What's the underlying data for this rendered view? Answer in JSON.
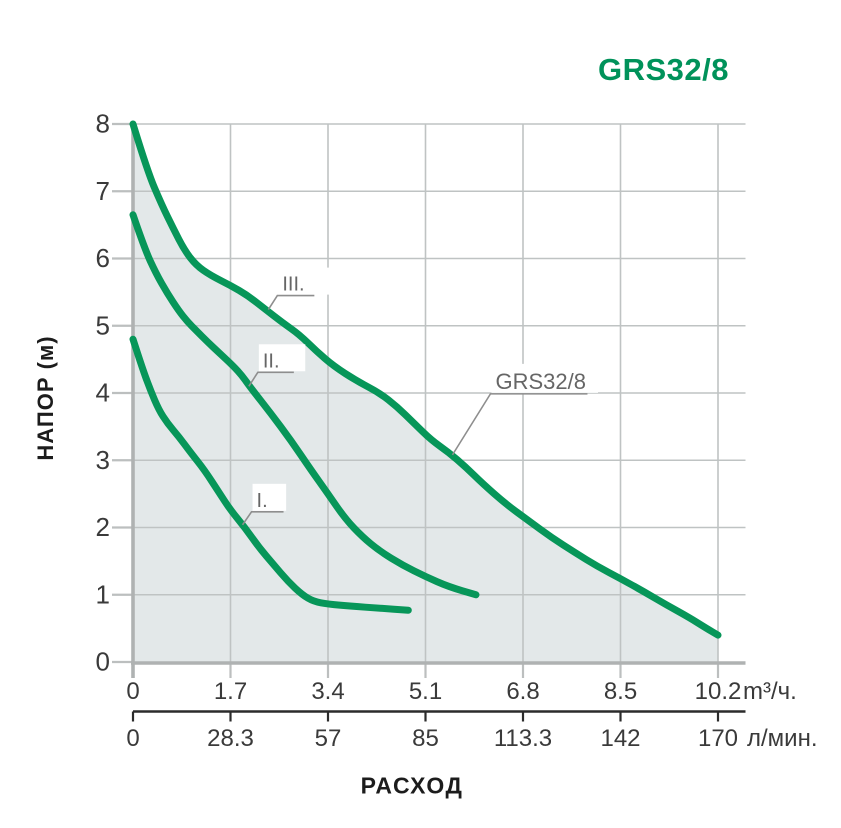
{
  "header": {
    "title": "GRS32/8",
    "title_color": "#00925A"
  },
  "chart": {
    "xlabel": "РАСХОД",
    "ylabel": "НАПОР (м)",
    "unit_primary": "m³/ч.",
    "unit_secondary": "л/мин.",
    "x_tick_labels_primary": [
      "0",
      "1.7",
      "3.4",
      "5.1",
      "6.8",
      "8.5",
      "10.2"
    ],
    "x_tick_labels_secondary": [
      "0",
      "28.3",
      "57",
      "85",
      "113.3",
      "142",
      "170"
    ],
    "y_tick_labels": [
      "0",
      "1",
      "2",
      "3",
      "4",
      "5",
      "6",
      "7",
      "8"
    ],
    "colors": {
      "curve": "#079659",
      "fill": "#E3E8E9",
      "grid": "#BFC3C3",
      "axis_gray": "#AFB2B2",
      "tick_gray": "#BCBFBF",
      "axis_dark": "#2B2B2B",
      "tick_text": "#3A3A3A",
      "annotation_text": "#666666",
      "leader": "#8E8E8E"
    }
  },
  "chart_data": {
    "type": "line",
    "title": "GRS32/8",
    "xlabel": "РАСХОД",
    "ylabel": "НАПОР (м)",
    "x_units": [
      "m³/ч.",
      "л/мин."
    ],
    "xlim": [
      0,
      10.2
    ],
    "ylim": [
      0,
      8
    ],
    "x_ticks_m3h": [
      0,
      1.7,
      3.4,
      5.1,
      6.8,
      8.5,
      10.2
    ],
    "x_ticks_lmin": [
      0,
      28.3,
      57,
      85,
      113.3,
      142,
      170
    ],
    "y_ticks": [
      0,
      1,
      2,
      3,
      4,
      5,
      6,
      7,
      8
    ],
    "grid": true,
    "fill_under_series": "III.",
    "series": [
      {
        "name": "I.",
        "points": [
          [
            0,
            4.8
          ],
          [
            0.15,
            4.4
          ],
          [
            0.3,
            4.05
          ],
          [
            0.45,
            3.75
          ],
          [
            0.6,
            3.55
          ],
          [
            0.8,
            3.35
          ],
          [
            1.0,
            3.12
          ],
          [
            1.25,
            2.85
          ],
          [
            1.5,
            2.52
          ],
          [
            1.7,
            2.26
          ],
          [
            1.95,
            2.0
          ],
          [
            2.2,
            1.7
          ],
          [
            2.45,
            1.45
          ],
          [
            2.7,
            1.2
          ],
          [
            2.95,
            1.0
          ],
          [
            3.15,
            0.9
          ],
          [
            3.4,
            0.86
          ],
          [
            3.8,
            0.83
          ],
          [
            4.3,
            0.8
          ],
          [
            4.8,
            0.77
          ]
        ]
      },
      {
        "name": "II.",
        "points": [
          [
            0,
            6.65
          ],
          [
            0.2,
            6.15
          ],
          [
            0.4,
            5.78
          ],
          [
            0.6,
            5.48
          ],
          [
            0.8,
            5.22
          ],
          [
            0.95,
            5.06
          ],
          [
            1.1,
            4.93
          ],
          [
            1.3,
            4.76
          ],
          [
            1.5,
            4.6
          ],
          [
            1.75,
            4.4
          ],
          [
            1.9,
            4.26
          ],
          [
            2.05,
            4.08
          ],
          [
            2.4,
            3.7
          ],
          [
            2.75,
            3.3
          ],
          [
            3.1,
            2.86
          ],
          [
            3.4,
            2.5
          ],
          [
            3.7,
            2.13
          ],
          [
            4.0,
            1.86
          ],
          [
            4.3,
            1.65
          ],
          [
            4.7,
            1.44
          ],
          [
            5.1,
            1.27
          ],
          [
            5.5,
            1.12
          ],
          [
            5.98,
            1.0
          ]
        ]
      },
      {
        "name": "III.",
        "points": [
          [
            0,
            8.0
          ],
          [
            0.25,
            7.3
          ],
          [
            0.5,
            6.8
          ],
          [
            0.7,
            6.45
          ],
          [
            0.9,
            6.12
          ],
          [
            1.1,
            5.9
          ],
          [
            1.35,
            5.75
          ],
          [
            1.7,
            5.6
          ],
          [
            2.0,
            5.45
          ],
          [
            2.3,
            5.25
          ],
          [
            2.6,
            5.05
          ],
          [
            2.9,
            4.87
          ],
          [
            3.2,
            4.62
          ],
          [
            3.5,
            4.4
          ],
          [
            3.9,
            4.18
          ],
          [
            4.3,
            4.0
          ],
          [
            4.6,
            3.8
          ],
          [
            4.9,
            3.55
          ],
          [
            5.2,
            3.3
          ],
          [
            5.5,
            3.12
          ],
          [
            5.8,
            2.9
          ],
          [
            6.1,
            2.65
          ],
          [
            6.5,
            2.35
          ],
          [
            6.9,
            2.1
          ],
          [
            7.3,
            1.85
          ],
          [
            7.7,
            1.63
          ],
          [
            8.1,
            1.42
          ],
          [
            8.5,
            1.24
          ],
          [
            8.9,
            1.05
          ],
          [
            9.3,
            0.85
          ],
          [
            9.7,
            0.66
          ],
          [
            10.0,
            0.5
          ],
          [
            10.2,
            0.4
          ]
        ]
      }
    ],
    "annotations": [
      {
        "label": "I.",
        "attach": [
          1.91,
          2.04
        ],
        "elbow": [
          9,
          -13
        ],
        "underline": 32,
        "font": 20
      },
      {
        "label": "II.",
        "attach": [
          2.02,
          4.1
        ],
        "elbow": [
          9,
          -14
        ],
        "underline": 36,
        "font": 20
      },
      {
        "label": "III.",
        "attach": [
          2.36,
          5.24
        ],
        "elbow": [
          9,
          -14
        ],
        "underline": 37,
        "font": 20
      },
      {
        "label": "GRS32/8",
        "attach": [
          5.57,
          3.08
        ],
        "elbow": [
          38,
          -61
        ],
        "underline": 97,
        "font": 22
      }
    ]
  }
}
